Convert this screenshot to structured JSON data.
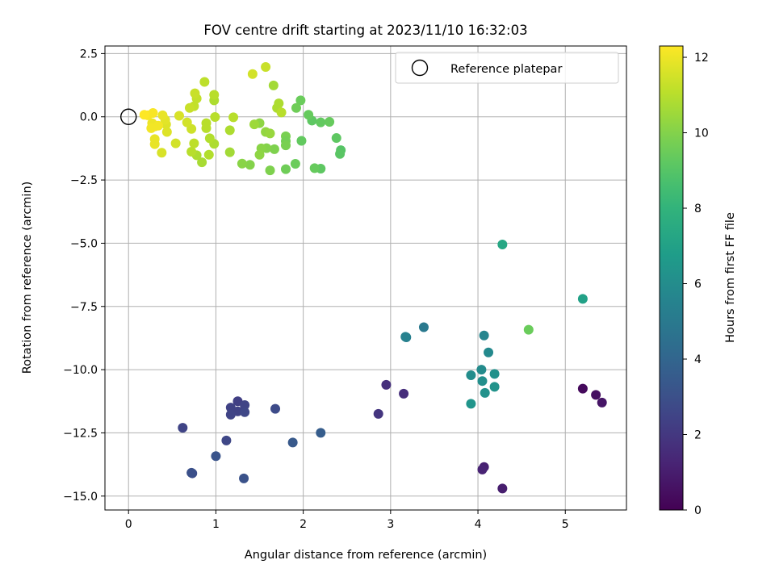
{
  "chart_data": {
    "type": "scatter",
    "title": "FOV centre drift starting at 2023/11/10 16:32:03",
    "xlabel": "Angular distance from reference (arcmin)",
    "ylabel": "Rotation from reference (arcmin)",
    "xlim": [
      -0.27,
      5.7
    ],
    "ylim": [
      -15.55,
      2.8
    ],
    "xticks": [
      0,
      1,
      2,
      3,
      4,
      5
    ],
    "xtick_labels": [
      "0",
      "1",
      "2",
      "3",
      "4",
      "5"
    ],
    "yticks": [
      2.5,
      0,
      -2.5,
      -5,
      -7.5,
      -10,
      -12.5,
      -15
    ],
    "ytick_labels": [
      "2.5",
      "0.0",
      "−2.5",
      "−5.0",
      "−7.5",
      "−10.0",
      "−12.5",
      "−15.0"
    ],
    "grid": true,
    "legend": {
      "placement": "top-right",
      "entries": [
        "Reference platepar"
      ]
    },
    "reference_point": {
      "x": 0,
      "y": 0
    },
    "colorbar": {
      "label": "Hours from first FF file",
      "colormap": "viridis",
      "range": [
        0,
        12.3
      ],
      "ticks": [
        0,
        2,
        4,
        6,
        8,
        10,
        12
      ],
      "tick_labels": [
        "0",
        "2",
        "4",
        "6",
        "8",
        "10",
        "12"
      ]
    },
    "series": [
      {
        "points": [
          [
            5.2,
            -10.75,
            0.3
          ],
          [
            5.35,
            -11.0,
            0.5
          ],
          [
            5.42,
            -11.3,
            0.7
          ],
          [
            4.07,
            -13.85,
            1.1
          ],
          [
            4.05,
            -13.95,
            1.2
          ],
          [
            4.28,
            -14.7,
            1.0
          ],
          [
            3.15,
            -10.95,
            1.6
          ],
          [
            2.95,
            -10.6,
            1.7
          ],
          [
            2.86,
            -11.75,
            1.9
          ],
          [
            1.25,
            -11.25,
            2.3
          ],
          [
            1.17,
            -11.5,
            2.4
          ],
          [
            1.33,
            -11.4,
            2.5
          ],
          [
            1.25,
            -11.65,
            2.4
          ],
          [
            1.33,
            -11.68,
            2.6
          ],
          [
            1.17,
            -11.78,
            2.5
          ],
          [
            1.68,
            -11.55,
            2.8
          ],
          [
            1.12,
            -12.8,
            2.6
          ],
          [
            0.62,
            -12.3,
            2.5
          ],
          [
            0.73,
            -14.1,
            2.9
          ],
          [
            0.72,
            -14.08,
            3.0
          ],
          [
            1.32,
            -14.3,
            3.1
          ],
          [
            1.0,
            -13.42,
            3.2
          ],
          [
            1.88,
            -12.88,
            3.4
          ],
          [
            2.2,
            -12.5,
            3.6
          ],
          [
            3.38,
            -8.32,
            5.0
          ],
          [
            3.18,
            -8.72,
            5.3
          ],
          [
            3.17,
            -8.7,
            5.4
          ],
          [
            4.07,
            -8.65,
            5.6
          ],
          [
            4.12,
            -9.32,
            5.8
          ],
          [
            4.04,
            -10.0,
            5.9
          ],
          [
            3.92,
            -10.22,
            6.0
          ],
          [
            4.05,
            -10.45,
            6.1
          ],
          [
            4.19,
            -10.17,
            6.2
          ],
          [
            4.08,
            -10.92,
            6.2
          ],
          [
            4.19,
            -10.68,
            6.3
          ],
          [
            3.92,
            -11.35,
            6.4
          ],
          [
            5.2,
            -7.2,
            7.0
          ],
          [
            4.28,
            -5.05,
            7.3
          ],
          [
            4.58,
            -8.42,
            9.5
          ],
          [
            2.43,
            -1.32,
            9.0
          ],
          [
            2.42,
            -1.47,
            9.1
          ],
          [
            2.38,
            -0.84,
            9.2
          ],
          [
            2.3,
            -0.2,
            9.4
          ],
          [
            2.2,
            -0.22,
            9.3
          ],
          [
            2.1,
            -0.15,
            9.2
          ],
          [
            2.06,
            0.08,
            9.4
          ],
          [
            1.97,
            0.65,
            9.5
          ],
          [
            1.92,
            0.35,
            9.6
          ],
          [
            1.98,
            -0.95,
            9.3
          ],
          [
            2.2,
            -2.05,
            9.2
          ],
          [
            2.13,
            -2.03,
            9.4
          ],
          [
            1.91,
            -1.86,
            9.5
          ],
          [
            1.8,
            -2.07,
            9.6
          ],
          [
            1.8,
            -0.77,
            9.8
          ],
          [
            1.8,
            -0.96,
            9.7
          ],
          [
            1.8,
            -1.13,
            9.8
          ],
          [
            1.67,
            -1.28,
            9.9
          ],
          [
            1.58,
            -1.24,
            10.0
          ],
          [
            1.52,
            -1.25,
            10.1
          ],
          [
            1.5,
            -1.5,
            10.2
          ],
          [
            1.62,
            -2.12,
            9.9
          ],
          [
            1.39,
            -1.9,
            10.0
          ],
          [
            1.3,
            -1.85,
            10.1
          ],
          [
            1.5,
            -0.25,
            10.2
          ],
          [
            1.57,
            -0.6,
            10.3
          ],
          [
            1.62,
            -0.66,
            10.4
          ],
          [
            1.44,
            -0.3,
            10.5
          ],
          [
            1.66,
            1.24,
            10.6
          ],
          [
            1.7,
            0.35,
            10.8
          ],
          [
            1.72,
            0.53,
            10.8
          ],
          [
            1.75,
            0.17,
            11.0
          ],
          [
            1.57,
            1.97,
            11.3
          ],
          [
            1.42,
            1.69,
            11.5
          ],
          [
            1.16,
            -1.4,
            10.6
          ],
          [
            1.16,
            -0.53,
            10.8
          ],
          [
            1.2,
            -0.02,
            11.0
          ],
          [
            0.98,
            0.65,
            10.8
          ],
          [
            0.98,
            0.87,
            11.0
          ],
          [
            0.99,
            -0.01,
            11.0
          ],
          [
            0.98,
            -1.07,
            10.8
          ],
          [
            0.93,
            -0.85,
            10.9
          ],
          [
            0.89,
            -0.45,
            11.0
          ],
          [
            0.89,
            -0.25,
            11.0
          ],
          [
            0.87,
            1.38,
            11.1
          ],
          [
            0.84,
            -1.8,
            10.7
          ],
          [
            0.92,
            -1.5,
            10.9
          ],
          [
            0.78,
            -1.52,
            10.8
          ],
          [
            0.72,
            -1.38,
            11.0
          ],
          [
            0.75,
            -1.05,
            11.1
          ],
          [
            0.78,
            0.72,
            11.2
          ],
          [
            0.76,
            0.93,
            11.3
          ],
          [
            0.75,
            0.42,
            11.2
          ],
          [
            0.7,
            0.35,
            11.3
          ],
          [
            0.72,
            -0.48,
            11.4
          ],
          [
            0.67,
            -0.22,
            11.5
          ],
          [
            0.58,
            0.04,
            11.6
          ],
          [
            0.54,
            -1.05,
            11.5
          ],
          [
            0.43,
            -0.3,
            11.7
          ],
          [
            0.44,
            -0.6,
            11.7
          ],
          [
            0.42,
            -0.12,
            11.8
          ],
          [
            0.38,
            -1.42,
            11.6
          ],
          [
            0.39,
            0.06,
            11.9
          ],
          [
            0.3,
            -0.38,
            11.9
          ],
          [
            0.27,
            -0.25,
            12.0
          ],
          [
            0.34,
            -0.35,
            12.1
          ],
          [
            0.3,
            -0.88,
            11.9
          ],
          [
            0.3,
            -1.08,
            11.9
          ],
          [
            0.28,
            0.15,
            12.2
          ],
          [
            0.26,
            -0.45,
            12.1
          ],
          [
            0.22,
            0.06,
            12.2
          ],
          [
            0.18,
            0.08,
            12.3
          ]
        ]
      }
    ]
  }
}
